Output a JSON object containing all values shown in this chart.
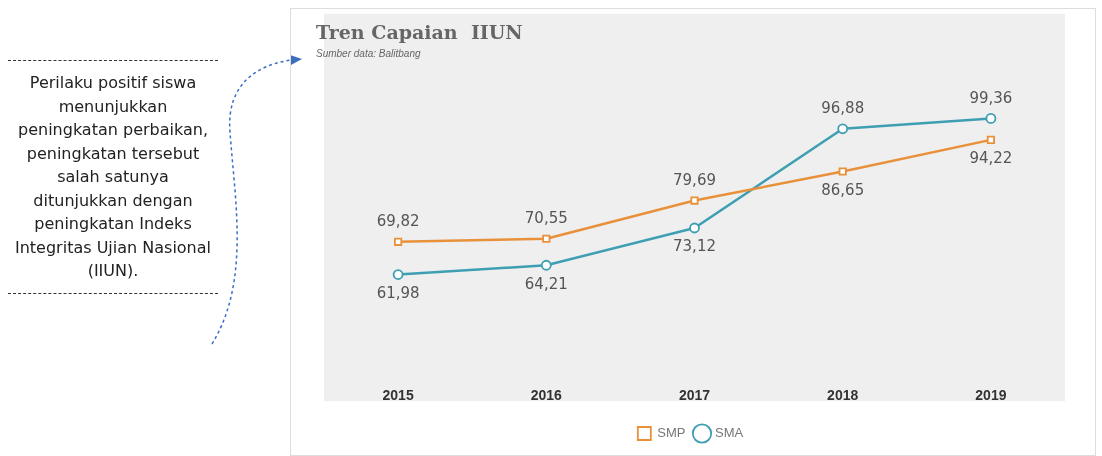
{
  "chart_data": {
    "type": "line",
    "title": "Tren Capaian  IIUN",
    "subtitle": "Sumber data: Balitbang",
    "annotations": [
      "Perilaku positif siswa menunjukkan peningkatan perbaikan, peningkatan tersebut salah satunya ditunjukkan dengan peningkatan Indeks Integritas Ujian Nasional (IIUN)."
    ],
    "categories": [
      "2015",
      "2016",
      "2017",
      "2018",
      "2019"
    ],
    "series": [
      {
        "name": "SMP",
        "color": "#e8913a",
        "marker": "square",
        "values": [
          69.82,
          70.55,
          79.69,
          86.65,
          94.22
        ],
        "value_labels": [
          "69,82",
          "70,55",
          "79,69",
          "86,65",
          "94,22"
        ]
      },
      {
        "name": "SMA",
        "color": "#3e9fb3",
        "marker": "circle",
        "values": [
          61.98,
          64.21,
          73.12,
          96.88,
          99.36
        ],
        "value_labels": [
          "61,98",
          "64,21",
          "73,12",
          "96,88",
          "99,36"
        ]
      }
    ],
    "tick_labels": "x",
    "legend": "bottom"
  }
}
